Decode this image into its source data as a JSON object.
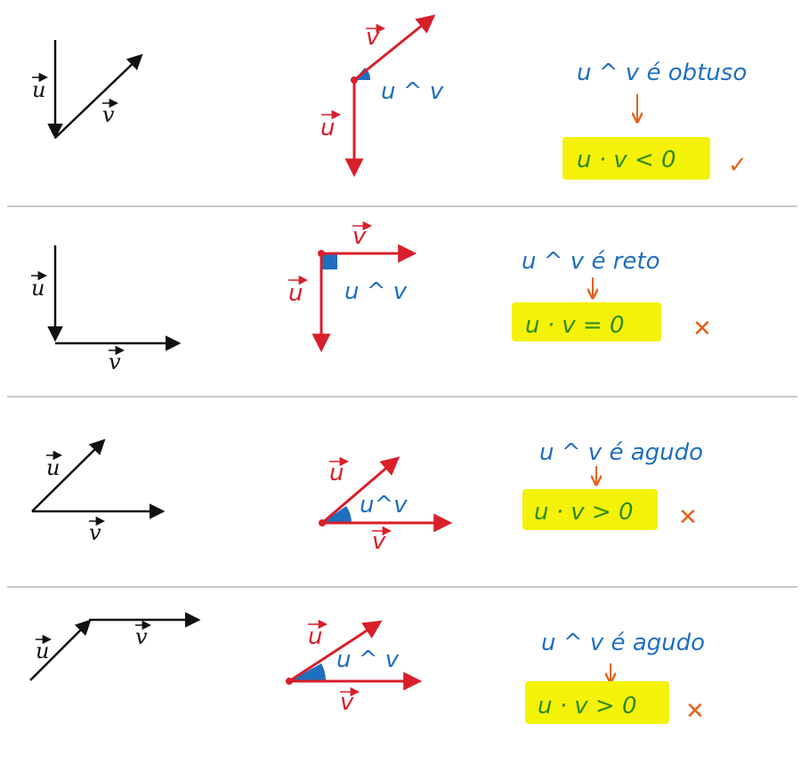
{
  "labels": {
    "u": "u",
    "v": "v",
    "angle_uv": "u ^ v",
    "angle_uv_compact": "u^v"
  },
  "rows": [
    {
      "statement": "u ^ v é obtuso",
      "result": "u · v < 0",
      "verdict": "✓"
    },
    {
      "statement": "u ^ v é reto",
      "result": "u · v = 0",
      "verdict": "✕"
    },
    {
      "statement": "u ^ v é agudo",
      "result": "u · v > 0",
      "verdict": "✕"
    },
    {
      "statement": "u ^ v é agudo",
      "result": "u · v > 0",
      "verdict": "✕"
    }
  ],
  "colors": {
    "black": "#111111",
    "red": "#d81f2a",
    "blue": "#1f6fc0",
    "highlight": "#f5f20a",
    "green": "#2e8b1e",
    "orange": "#e0641c",
    "divider": "#b8b8b8"
  }
}
